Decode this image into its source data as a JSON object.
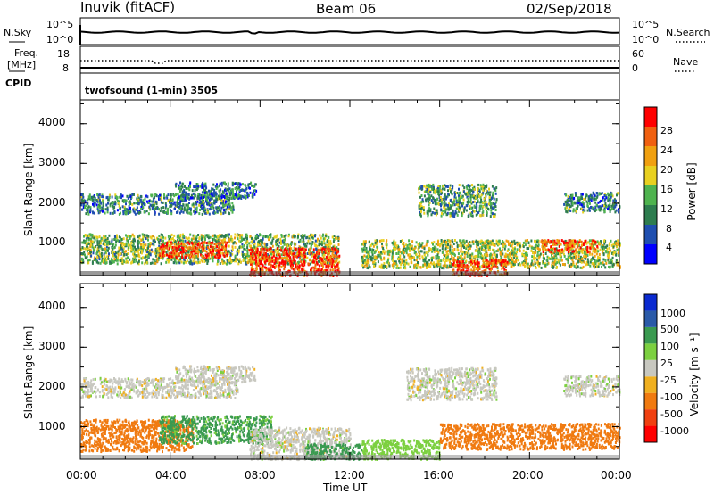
{
  "header": {
    "station": "Inuvik (fitACF)",
    "beam": "Beam 06",
    "date": "02/Sep/2018"
  },
  "nsky_panel": {
    "left_label": "N.Sky",
    "right_label": "N.Search",
    "left_ticks": [
      "10^5",
      "10^0"
    ],
    "right_ticks": [
      "10^5",
      "10^0"
    ]
  },
  "freq_panel": {
    "left_label_1": "Freq.",
    "left_label_2": "[MHz]",
    "right_label": "Nave",
    "left_ticks": [
      "18",
      "8"
    ],
    "right_ticks": [
      "60",
      "0"
    ]
  },
  "cpid": {
    "label": "CPID",
    "program": "twofsound (1-min) 3505"
  },
  "chart_data": [
    {
      "type": "heatmap",
      "title": "Power",
      "ylabel": "Slant Range [km]",
      "ylim": [
        180,
        4600
      ],
      "yticks": [
        "1000",
        "2000",
        "3000",
        "4000"
      ],
      "xlim": [
        "00:00",
        "24:00"
      ],
      "colorbar": {
        "label": "Power [dB]",
        "ticks": [
          "28",
          "24",
          "20",
          "16",
          "12",
          "8",
          "4"
        ],
        "colors": [
          "#0000ff",
          "#1f4fb0",
          "#2e7d4f",
          "#4fb34f",
          "#e8d020",
          "#f0a010",
          "#f06010",
          "#ff0000"
        ],
        "range": [
          0,
          32
        ]
      },
      "scatter_bands": [
        {
          "t_start": 0.0,
          "t_end": 6.8,
          "r_min": 1750,
          "r_max": 2250,
          "value": 10
        },
        {
          "t_start": 4.2,
          "t_end": 7.8,
          "r_min": 2150,
          "r_max": 2550,
          "value": 9
        },
        {
          "t_start": 0.0,
          "t_end": 11.5,
          "r_min": 500,
          "r_max": 1250,
          "value": 14
        },
        {
          "t_start": 3.5,
          "t_end": 6.5,
          "r_min": 650,
          "r_max": 1050,
          "value": 27
        },
        {
          "t_start": 7.5,
          "t_end": 11.5,
          "r_min": 200,
          "r_max": 900,
          "value": 28
        },
        {
          "t_start": 12.5,
          "t_end": 24.0,
          "r_min": 400,
          "r_max": 1100,
          "value": 16
        },
        {
          "t_start": 15.0,
          "t_end": 18.5,
          "r_min": 1700,
          "r_max": 2500,
          "value": 12
        },
        {
          "t_start": 16.5,
          "t_end": 19.0,
          "r_min": 200,
          "r_max": 600,
          "value": 27
        },
        {
          "t_start": 20.5,
          "t_end": 23.0,
          "r_min": 800,
          "r_max": 1100,
          "value": 26
        },
        {
          "t_start": 21.5,
          "t_end": 24.0,
          "r_min": 1800,
          "r_max": 2300,
          "value": 10
        }
      ]
    },
    {
      "type": "heatmap",
      "title": "Velocity",
      "ylabel": "Slant Range [km]",
      "ylim": [
        180,
        4600
      ],
      "yticks": [
        "1000",
        "2000",
        "3000",
        "4000"
      ],
      "xlabel": "Time UT",
      "xticks": [
        "00:00",
        "04:00",
        "08:00",
        "12:00",
        "16:00",
        "20:00",
        "00:00"
      ],
      "xlim": [
        "00:00",
        "24:00"
      ],
      "colorbar": {
        "label": "Velocity [m s⁻¹]",
        "ticks": [
          "1000",
          "500",
          "100",
          "25",
          "-25",
          "-100",
          "-500",
          "-1000"
        ],
        "colors": [
          "#ff0000",
          "#f04010",
          "#f07a10",
          "#f0b020",
          "#c8c8c0",
          "#7cd040",
          "#3a9a50",
          "#2a5aa8",
          "#0a2ad0"
        ]
      },
      "scatter_bands": [
        {
          "t_start": 0.0,
          "t_end": 7.0,
          "r_min": 1750,
          "r_max": 2250,
          "value": 0
        },
        {
          "t_start": 4.2,
          "t_end": 7.8,
          "r_min": 2150,
          "r_max": 2550,
          "value": 0
        },
        {
          "t_start": 0.0,
          "t_end": 5.0,
          "r_min": 400,
          "r_max": 1200,
          "value": -200
        },
        {
          "t_start": 3.5,
          "t_end": 8.5,
          "r_min": 600,
          "r_max": 1300,
          "value": 150
        },
        {
          "t_start": 7.5,
          "t_end": 12.0,
          "r_min": 200,
          "r_max": 1000,
          "value": 0
        },
        {
          "t_start": 10.0,
          "t_end": 12.5,
          "r_min": 200,
          "r_max": 600,
          "value": 200
        },
        {
          "t_start": 12.5,
          "t_end": 16.0,
          "r_min": 200,
          "r_max": 700,
          "value": 60
        },
        {
          "t_start": 14.5,
          "t_end": 18.5,
          "r_min": 1700,
          "r_max": 2500,
          "value": 0
        },
        {
          "t_start": 16.0,
          "t_end": 24.0,
          "r_min": 450,
          "r_max": 1100,
          "value": -250
        },
        {
          "t_start": 21.5,
          "t_end": 24.0,
          "r_min": 1800,
          "r_max": 2300,
          "value": 0
        }
      ]
    }
  ]
}
